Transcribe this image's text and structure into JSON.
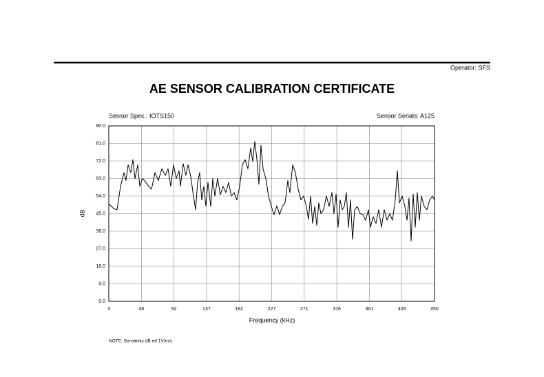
{
  "header": {
    "operator": "Operator: SFS"
  },
  "chart_data": {
    "type": "line",
    "title": "AE SENSOR CALIBRATION CERTIFICATE",
    "left_caption": "Sensor Spec.: IOTS150",
    "right_caption": "Sensor Serials: A125",
    "xlabel": "Frequency (kHz)",
    "ylabel": "dB",
    "x": [
      3,
      9.6,
      14.3,
      19.1,
      23.8,
      26.6,
      29.5,
      33.2,
      36.1,
      38.9,
      42.7,
      45.5,
      49.3,
      54,
      57.8,
      61.6,
      66.3,
      71,
      75.8,
      80.5,
      84.3,
      88,
      91.8,
      95.6,
      99.4,
      101.3,
      105.1,
      108.8,
      111.7,
      115.5,
      119.2,
      122.1,
      124.9,
      127.7,
      130.6,
      133.4,
      136.2,
      139.1,
      142.9,
      145.7,
      148.5,
      152.3,
      156.1,
      159.9,
      163.7,
      167.4,
      171.2,
      175,
      178.8,
      182.6,
      186.3,
      190.1,
      193.9,
      197.7,
      200.5,
      203.3,
      206.2,
      209,
      211.8,
      214.7,
      218.5,
      222.2,
      226,
      229.8,
      233.6,
      237.4,
      241.1,
      244.9,
      248.7,
      251.5,
      255.3,
      259.1,
      262.9,
      266.7,
      270.4,
      274.2,
      277,
      279.9,
      282.7,
      285.6,
      288.4,
      291.2,
      294.1,
      297.8,
      301.6,
      305.4,
      309.2,
      312,
      314.9,
      317.7,
      320.5,
      323.4,
      326.2,
      329,
      331.9,
      334.7,
      337.5,
      340.4,
      344.1,
      347.9,
      351.7,
      355.5,
      359.3,
      362.1,
      365.9,
      369.7,
      373.4,
      377.2,
      381,
      384.8,
      388.6,
      392.3,
      396.1,
      399,
      401.8,
      405.6,
      409.4,
      412.2,
      415,
      417.9,
      420.7,
      423.5,
      426.4,
      429.2,
      432,
      435.8,
      439.6,
      443.4,
      447.2,
      450
    ],
    "series": [
      {
        "name": "Sensitivity",
        "color": "#000000",
        "values": [
          50,
          47.6,
          47,
          59,
          66,
          62,
          70,
          66,
          72.7,
          63,
          70,
          59,
          63,
          61,
          59,
          57.5,
          66,
          62,
          68,
          64.6,
          68,
          59,
          70,
          63,
          67,
          59,
          70.6,
          64.6,
          70,
          64,
          54,
          47,
          61,
          66,
          52,
          59,
          49,
          61,
          48.7,
          63,
          54,
          63,
          54.7,
          59,
          55.8,
          61,
          54,
          55.8,
          52,
          59,
          70,
          72.7,
          68,
          78.7,
          71.7,
          82,
          73,
          60,
          80,
          68,
          63,
          54,
          48.7,
          44.5,
          49,
          44.5,
          48.7,
          50.5,
          62,
          55.8,
          70,
          66,
          57.5,
          52,
          54,
          48.7,
          42,
          54,
          40,
          48.7,
          39,
          50.5,
          45,
          47,
          54,
          48.7,
          55.8,
          45,
          55,
          38,
          52,
          47,
          48.7,
          55.8,
          38,
          52,
          31.8,
          47,
          48.7,
          45,
          44.5,
          41.6,
          47,
          38,
          43.4,
          40,
          47,
          38,
          47,
          41.6,
          45,
          41.6,
          52,
          67,
          50.5,
          54,
          48.7,
          41.6,
          53,
          31,
          55,
          38,
          55.8,
          41.6,
          54,
          48.7,
          47,
          52,
          54,
          52
        ]
      }
    ],
    "xlim": [
      3,
      450
    ],
    "xticks": [
      3,
      {
        "value": 47.7,
        "label": "48"
      },
      {
        "value": 92.4,
        "label": "92"
      },
      {
        "value": 137.1,
        "label": "137"
      },
      {
        "value": 181.8,
        "label": "182"
      },
      {
        "value": 226.5,
        "label": "227"
      },
      {
        "value": 271.2,
        "label": "271"
      },
      {
        "value": 315.9,
        "label": "316"
      },
      {
        "value": 360.6,
        "label": "361"
      },
      {
        "value": 405.3,
        "label": "405"
      },
      450
    ],
    "ylim": [
      0,
      90
    ],
    "yticks": [
      {
        "value": 0,
        "label": "0.0"
      },
      {
        "value": 9,
        "label": "9.0"
      },
      {
        "value": 18,
        "label": "18.0"
      },
      {
        "value": 27,
        "label": "27.0"
      },
      {
        "value": 36,
        "label": "36.0"
      },
      {
        "value": 45,
        "label": "45.0"
      },
      {
        "value": 54,
        "label": "54.0"
      },
      {
        "value": 63,
        "label": "63.0"
      },
      {
        "value": 72,
        "label": "72.0"
      },
      {
        "value": 81,
        "label": "81.0"
      },
      {
        "value": 90,
        "label": "90.0"
      }
    ],
    "grid": true,
    "note": "NOTE:  Sensitivity dB ref 1V/m/s"
  }
}
